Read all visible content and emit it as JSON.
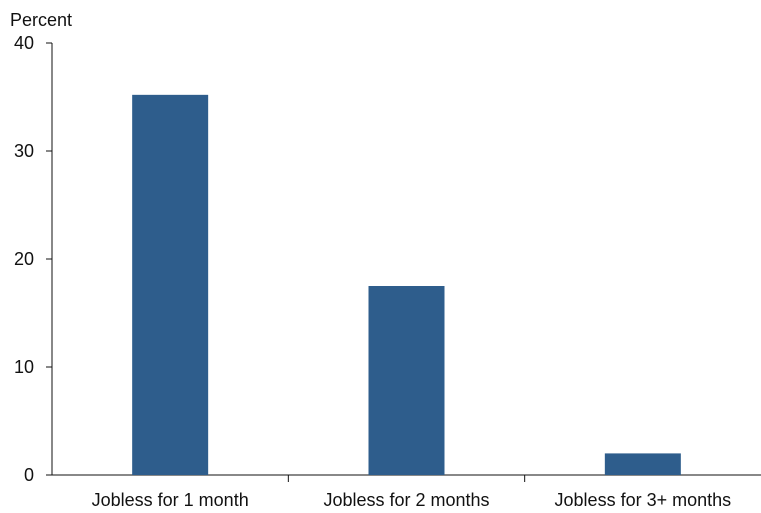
{
  "chart_data": {
    "type": "bar",
    "title": "",
    "xlabel": "",
    "ylabel": "Percent",
    "categories": [
      "Jobless for 1 month",
      "Jobless for 2 months",
      "Jobless for 3+ months"
    ],
    "values": [
      35.2,
      17.5,
      2.0
    ],
    "ylim": [
      0,
      40
    ],
    "yticks": [
      0,
      10,
      20,
      30,
      40
    ],
    "grid": false,
    "legend": "none",
    "bar_color": "#2e5d8c"
  }
}
